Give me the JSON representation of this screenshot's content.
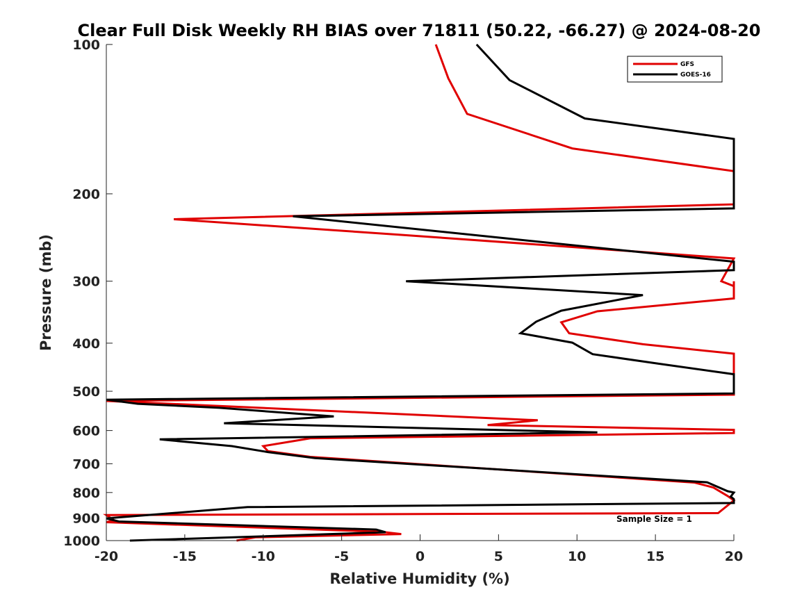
{
  "chart_data": {
    "type": "line",
    "title": "Clear Full Disk Weekly RH BIAS over 71811 (50.22, -66.27) @ 2024-08-20",
    "xlabel": "Relative Humidity (%)",
    "ylabel": "Pressure (mb)",
    "xlim": [
      -20,
      20
    ],
    "ylim": [
      100,
      1000
    ],
    "y_scale": "log",
    "y_reversed": true,
    "x_ticks": [
      "-20",
      "-15",
      "-10",
      "-5",
      "0",
      "5",
      "10",
      "15",
      "20"
    ],
    "y_ticks": [
      "100",
      "200",
      "300",
      "400",
      "500",
      "600",
      "700",
      "800",
      "900",
      "1000"
    ],
    "legend_position": "top-right",
    "annotation": "Sample Size = 1",
    "series": [
      {
        "name": "GFS",
        "color": "#e00000",
        "points": [
          [
            1.0,
            100
          ],
          [
            1.8,
            117
          ],
          [
            3.0,
            138
          ],
          [
            9.7,
            162
          ],
          [
            20,
            180
          ],
          [
            20,
            210
          ],
          [
            -15.7,
            225
          ],
          [
            -1.2,
            242
          ],
          [
            20,
            270
          ],
          [
            19.2,
            300
          ],
          [
            20,
            307
          ],
          [
            20,
            300
          ],
          [
            20,
            325
          ],
          [
            11.3,
            345
          ],
          [
            9.0,
            363
          ],
          [
            9.5,
            382
          ],
          [
            14.2,
            402
          ],
          [
            20,
            420
          ],
          [
            20,
            508
          ],
          [
            -20,
            523
          ],
          [
            7.5,
            572
          ],
          [
            4.3,
            585
          ],
          [
            20,
            598
          ],
          [
            20,
            607
          ],
          [
            -7.0,
            622
          ],
          [
            -10.0,
            645
          ],
          [
            -9.7,
            660
          ],
          [
            -7.0,
            678
          ],
          [
            17.5,
            764
          ],
          [
            18.7,
            782
          ],
          [
            19.6,
            813
          ],
          [
            20,
            830
          ],
          [
            19.0,
            880
          ],
          [
            -20,
            888
          ],
          [
            -19.5,
            910
          ],
          [
            -20,
            918
          ],
          [
            -2.5,
            960
          ],
          [
            -1.2,
            970
          ],
          [
            -10.5,
            985
          ],
          [
            -11.7,
            1000
          ]
        ]
      },
      {
        "name": "GOES-16",
        "color": "#000000",
        "points": [
          [
            3.6,
            100
          ],
          [
            5.7,
            118
          ],
          [
            10.5,
            141
          ],
          [
            20,
            155
          ],
          [
            20,
            214
          ],
          [
            -8.1,
            222
          ],
          [
            5.0,
            245
          ],
          [
            20,
            274
          ],
          [
            20,
            285
          ],
          [
            -0.9,
            300
          ],
          [
            14.2,
            320
          ],
          [
            9.0,
            344
          ],
          [
            7.4,
            362
          ],
          [
            6.4,
            382
          ],
          [
            9.7,
            399
          ],
          [
            11.0,
            421
          ],
          [
            15.2,
            440
          ],
          [
            20,
            462
          ],
          [
            20,
            505
          ],
          [
            -20,
            520
          ],
          [
            -18,
            530
          ],
          [
            -12.8,
            540
          ],
          [
            -5.5,
            562
          ],
          [
            -12.5,
            580
          ],
          [
            11.3,
            605
          ],
          [
            -16.6,
            625
          ],
          [
            -12.0,
            645
          ],
          [
            -9.7,
            663
          ],
          [
            -6.7,
            682
          ],
          [
            18.3,
            763
          ],
          [
            19.6,
            795
          ],
          [
            20,
            800
          ],
          [
            19.8,
            815
          ],
          [
            20,
            825
          ],
          [
            20,
            840
          ],
          [
            -11.0,
            856
          ],
          [
            -20,
            902
          ],
          [
            -19.2,
            915
          ],
          [
            -2.8,
            950
          ],
          [
            -2.2,
            962
          ],
          [
            -11.9,
            985
          ],
          [
            -18.5,
            1000
          ]
        ]
      }
    ]
  }
}
